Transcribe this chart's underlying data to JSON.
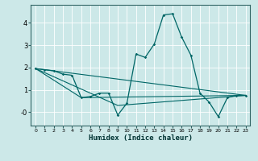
{
  "xlabel": "Humidex (Indice chaleur)",
  "bg_color": "#cce8e8",
  "grid_color": "#ffffff",
  "line_color": "#006666",
  "spine_color": "#336666",
  "xlim": [
    -0.5,
    23.5
  ],
  "ylim": [
    -0.6,
    4.8
  ],
  "yticks": [
    0,
    1,
    2,
    3,
    4
  ],
  "ytick_labels": [
    "-0",
    "1",
    "2",
    "3",
    "4"
  ],
  "xticks": [
    0,
    1,
    2,
    3,
    4,
    5,
    6,
    7,
    8,
    9,
    10,
    11,
    12,
    13,
    14,
    15,
    16,
    17,
    18,
    19,
    20,
    21,
    22,
    23
  ],
  "series": [
    [
      0,
      1.95
    ],
    [
      1,
      1.9
    ],
    [
      2,
      1.85
    ],
    [
      3,
      1.7
    ],
    [
      4,
      1.65
    ],
    [
      5,
      0.65
    ],
    [
      6,
      0.7
    ],
    [
      7,
      0.85
    ],
    [
      8,
      0.85
    ],
    [
      9,
      -0.13
    ],
    [
      10,
      0.4
    ],
    [
      11,
      2.6
    ],
    [
      12,
      2.45
    ],
    [
      13,
      3.05
    ],
    [
      14,
      4.35
    ],
    [
      15,
      4.4
    ],
    [
      16,
      3.35
    ],
    [
      17,
      2.55
    ],
    [
      18,
      0.85
    ],
    [
      19,
      0.45
    ],
    [
      20,
      -0.2
    ],
    [
      21,
      0.65
    ],
    [
      22,
      0.75
    ],
    [
      23,
      0.75
    ]
  ],
  "line2": [
    [
      0,
      1.95
    ],
    [
      23,
      0.75
    ]
  ],
  "line3": [
    [
      0,
      1.95
    ],
    [
      9,
      0.3
    ],
    [
      23,
      0.75
    ]
  ],
  "line4": [
    [
      0,
      1.95
    ],
    [
      5,
      0.65
    ],
    [
      23,
      0.75
    ]
  ]
}
